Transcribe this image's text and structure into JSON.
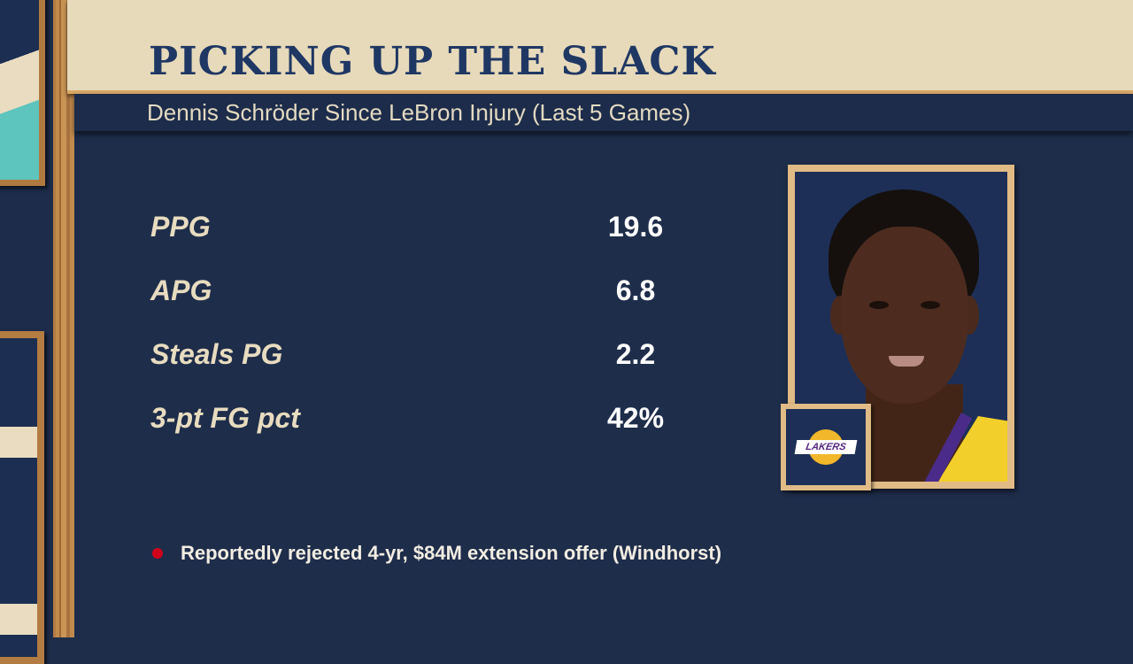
{
  "header": {
    "title": "PICKING UP THE SLACK",
    "subtitle": "Dennis Schröder Since LeBron Injury (Last 5 Games)"
  },
  "stats": [
    {
      "label": "PPG",
      "value": "19.6"
    },
    {
      "label": "APG",
      "value": "6.8"
    },
    {
      "label": "Steals PG",
      "value": "2.2"
    },
    {
      "label": "3-pt FG pct",
      "value": "42%"
    }
  ],
  "footnote": {
    "text": "Reportedly rejected 4-yr, $84M extension offer (Windhorst)",
    "bullet_color": "#d0021b"
  },
  "player_card": {
    "team_logo_text": "LAKERS",
    "jersey_color": "#f2cf2a"
  },
  "colors": {
    "title": "#1f3763",
    "header_bg": "#e7dabb",
    "panel_bg": "#1e2d4a",
    "frame_wood": "#e0bb86"
  }
}
